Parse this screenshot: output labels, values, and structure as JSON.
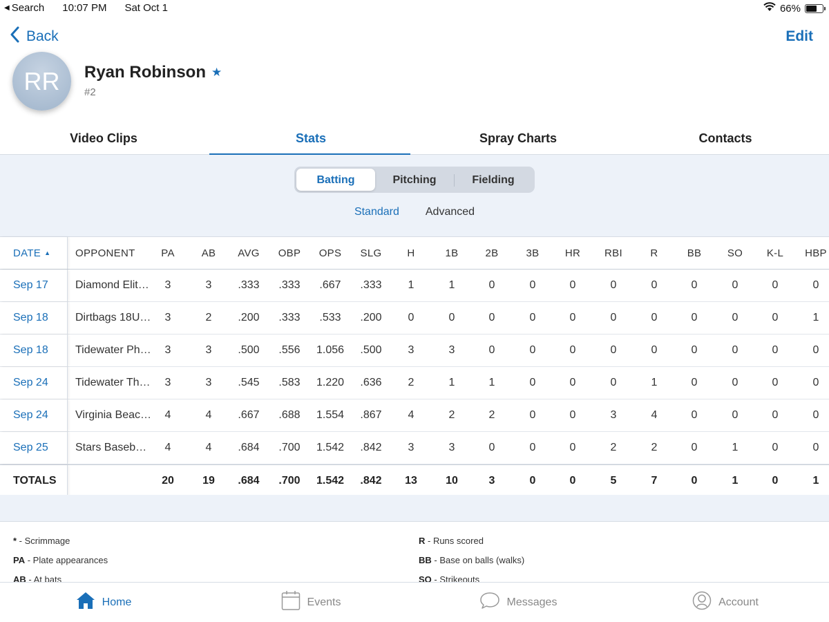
{
  "status_bar": {
    "back_app": "Search",
    "time": "10:07 PM",
    "date": "Sat Oct 1",
    "battery": "66%",
    "battery_level": 0.66
  },
  "nav": {
    "back_label": "Back",
    "edit_label": "Edit"
  },
  "player": {
    "initials": "RR",
    "name": "Ryan Robinson",
    "number": "#2"
  },
  "tabs": [
    {
      "label": "Video Clips"
    },
    {
      "label": "Stats"
    },
    {
      "label": "Spray Charts"
    },
    {
      "label": "Contacts"
    }
  ],
  "segments": [
    {
      "label": "Batting"
    },
    {
      "label": "Pitching"
    },
    {
      "label": "Fielding"
    }
  ],
  "subtabs": [
    {
      "label": "Standard"
    },
    {
      "label": "Advanced"
    }
  ],
  "table": {
    "headers": [
      "DATE",
      "OPPONENT",
      "PA",
      "AB",
      "AVG",
      "OBP",
      "OPS",
      "SLG",
      "H",
      "1B",
      "2B",
      "3B",
      "HR",
      "RBI",
      "R",
      "BB",
      "SO",
      "K-L",
      "HBP"
    ],
    "sort_indicator": "▲",
    "rows": [
      [
        "Sep 17",
        "Diamond Elit…",
        "3",
        "3",
        ".333",
        ".333",
        ".667",
        ".333",
        "1",
        "1",
        "0",
        "0",
        "0",
        "0",
        "0",
        "0",
        "0",
        "0",
        "0"
      ],
      [
        "Sep 18",
        "Dirtbags 18U…",
        "3",
        "2",
        ".200",
        ".333",
        ".533",
        ".200",
        "0",
        "0",
        "0",
        "0",
        "0",
        "0",
        "0",
        "0",
        "0",
        "0",
        "1"
      ],
      [
        "Sep 18",
        "Tidewater Ph…",
        "3",
        "3",
        ".500",
        ".556",
        "1.056",
        ".500",
        "3",
        "3",
        "0",
        "0",
        "0",
        "0",
        "0",
        "0",
        "0",
        "0",
        "0"
      ],
      [
        "Sep 24",
        "Tidewater Th…",
        "3",
        "3",
        ".545",
        ".583",
        "1.220",
        ".636",
        "2",
        "1",
        "1",
        "0",
        "0",
        "0",
        "1",
        "0",
        "0",
        "0",
        "0"
      ],
      [
        "Sep 24",
        "Virginia Beac…",
        "4",
        "4",
        ".667",
        ".688",
        "1.554",
        ".867",
        "4",
        "2",
        "2",
        "0",
        "0",
        "3",
        "4",
        "0",
        "0",
        "0",
        "0"
      ],
      [
        "Sep 25",
        "Stars Baseb…",
        "4",
        "4",
        ".684",
        ".700",
        "1.542",
        ".842",
        "3",
        "3",
        "0",
        "0",
        "0",
        "2",
        "2",
        "0",
        "1",
        "0",
        "0"
      ]
    ],
    "totals": [
      "TOTALS",
      "",
      "20",
      "19",
      ".684",
      ".700",
      "1.542",
      ".842",
      "13",
      "10",
      "3",
      "0",
      "0",
      "5",
      "7",
      "0",
      "1",
      "0",
      "1"
    ]
  },
  "legend": {
    "left": [
      {
        "abbr": "*",
        "desc": " - Scrimmage"
      },
      {
        "abbr": "PA",
        "desc": " - Plate appearances"
      },
      {
        "abbr": "AB",
        "desc": " - At bats"
      }
    ],
    "right": [
      {
        "abbr": "R",
        "desc": " - Runs scored"
      },
      {
        "abbr": "BB",
        "desc": " - Base on balls (walks)"
      },
      {
        "abbr": "SO",
        "desc": " - Strikeouts"
      }
    ]
  },
  "bottom_nav": [
    {
      "label": "Home",
      "icon": "home-icon"
    },
    {
      "label": "Events",
      "icon": "calendar-icon"
    },
    {
      "label": "Messages",
      "icon": "chat-bubble-icon"
    },
    {
      "label": "Account",
      "icon": "user-icon"
    }
  ],
  "colors": {
    "accent": "#1a6fb8",
    "panel": "#edf2f9"
  }
}
